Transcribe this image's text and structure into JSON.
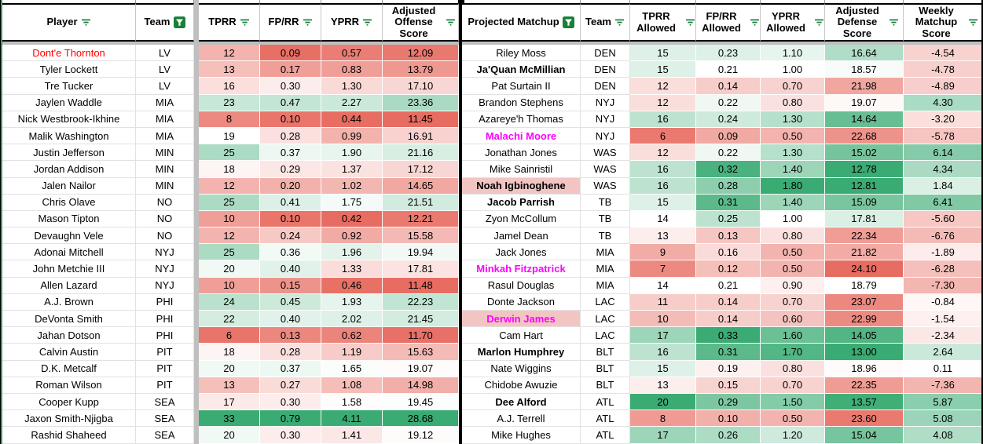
{
  "app": "spreadsheet-matchup-table",
  "colors": {
    "gradient_red": "#e7695e",
    "gradient_green": "#3aab73",
    "filter_icon_green": "#188038",
    "frozen_pane_gray": "#bfbfbf",
    "divider_black": "#000000",
    "edge_green": "#2da160",
    "name_highlight_pink": "#f3c5c2",
    "name_text_red": "#ff0000",
    "name_text_magenta": "#ff00ff"
  },
  "left_table": {
    "headers": [
      {
        "label": "Player",
        "filter": "lines"
      },
      {
        "label": "Team",
        "filter": "funnel"
      },
      {
        "label": "TPRR",
        "filter": "lines"
      },
      {
        "label": "FP/RR",
        "filter": "lines"
      },
      {
        "label": "YPRR",
        "filter": "lines"
      },
      {
        "label": "Adjusted Offense Score",
        "filter": "lines"
      }
    ],
    "rows": [
      {
        "player": "Dont'e Thornton",
        "team": "LV",
        "tprr": "12",
        "fprr": "0.09",
        "yprr": "0.57",
        "adj_offense": "12.09",
        "name_style": "red"
      },
      {
        "player": "Tyler Lockett",
        "team": "LV",
        "tprr": "13",
        "fprr": "0.17",
        "yprr": "0.83",
        "adj_offense": "13.79",
        "name_style": "normal"
      },
      {
        "player": "Tre Tucker",
        "team": "LV",
        "tprr": "16",
        "fprr": "0.30",
        "yprr": "1.30",
        "adj_offense": "17.10",
        "name_style": "normal"
      },
      {
        "player": "Jaylen Waddle",
        "team": "MIA",
        "tprr": "23",
        "fprr": "0.47",
        "yprr": "2.27",
        "adj_offense": "23.36",
        "name_style": "normal"
      },
      {
        "player": "Nick Westbrook-Ikhine",
        "team": "MIA",
        "tprr": "8",
        "fprr": "0.10",
        "yprr": "0.44",
        "adj_offense": "11.45",
        "name_style": "normal"
      },
      {
        "player": "Malik Washington",
        "team": "MIA",
        "tprr": "19",
        "fprr": "0.28",
        "yprr": "0.99",
        "adj_offense": "16.91",
        "name_style": "normal"
      },
      {
        "player": "Justin Jefferson",
        "team": "MIN",
        "tprr": "25",
        "fprr": "0.37",
        "yprr": "1.90",
        "adj_offense": "21.16",
        "name_style": "normal"
      },
      {
        "player": "Jordan Addison",
        "team": "MIN",
        "tprr": "18",
        "fprr": "0.29",
        "yprr": "1.37",
        "adj_offense": "17.12",
        "name_style": "normal"
      },
      {
        "player": "Jalen Nailor",
        "team": "MIN",
        "tprr": "12",
        "fprr": "0.20",
        "yprr": "1.02",
        "adj_offense": "14.65",
        "name_style": "normal"
      },
      {
        "player": "Chris Olave",
        "team": "NO",
        "tprr": "25",
        "fprr": "0.41",
        "yprr": "1.75",
        "adj_offense": "21.51",
        "name_style": "normal"
      },
      {
        "player": "Mason Tipton",
        "team": "NO",
        "tprr": "10",
        "fprr": "0.10",
        "yprr": "0.42",
        "adj_offense": "12.21",
        "name_style": "normal"
      },
      {
        "player": "Devaughn Vele",
        "team": "NO",
        "tprr": "12",
        "fprr": "0.24",
        "yprr": "0.92",
        "adj_offense": "15.58",
        "name_style": "normal"
      },
      {
        "player": "Adonai Mitchell",
        "team": "NYJ",
        "tprr": "25",
        "fprr": "0.36",
        "yprr": "1.96",
        "adj_offense": "19.94",
        "name_style": "normal"
      },
      {
        "player": "John Metchie III",
        "team": "NYJ",
        "tprr": "20",
        "fprr": "0.40",
        "yprr": "1.33",
        "adj_offense": "17.81",
        "name_style": "normal"
      },
      {
        "player": "Allen Lazard",
        "team": "NYJ",
        "tprr": "10",
        "fprr": "0.15",
        "yprr": "0.46",
        "adj_offense": "11.48",
        "name_style": "normal"
      },
      {
        "player": "A.J. Brown",
        "team": "PHI",
        "tprr": "24",
        "fprr": "0.45",
        "yprr": "1.93",
        "adj_offense": "22.23",
        "name_style": "normal"
      },
      {
        "player": "DeVonta Smith",
        "team": "PHI",
        "tprr": "22",
        "fprr": "0.40",
        "yprr": "2.02",
        "adj_offense": "21.45",
        "name_style": "normal"
      },
      {
        "player": "Jahan Dotson",
        "team": "PHI",
        "tprr": "6",
        "fprr": "0.13",
        "yprr": "0.62",
        "adj_offense": "11.70",
        "name_style": "normal"
      },
      {
        "player": "Calvin Austin",
        "team": "PIT",
        "tprr": "18",
        "fprr": "0.28",
        "yprr": "1.19",
        "adj_offense": "15.63",
        "name_style": "normal"
      },
      {
        "player": "D.K. Metcalf",
        "team": "PIT",
        "tprr": "20",
        "fprr": "0.37",
        "yprr": "1.65",
        "adj_offense": "19.07",
        "name_style": "normal"
      },
      {
        "player": "Roman Wilson",
        "team": "PIT",
        "tprr": "13",
        "fprr": "0.27",
        "yprr": "1.08",
        "adj_offense": "14.98",
        "name_style": "normal"
      },
      {
        "player": "Cooper Kupp",
        "team": "SEA",
        "tprr": "17",
        "fprr": "0.30",
        "yprr": "1.58",
        "adj_offense": "19.45",
        "name_style": "normal"
      },
      {
        "player": "Jaxon Smith-Njigba",
        "team": "SEA",
        "tprr": "33",
        "fprr": "0.79",
        "yprr": "4.11",
        "adj_offense": "28.68",
        "name_style": "normal"
      },
      {
        "player": "Rashid Shaheed",
        "team": "SEA",
        "tprr": "20",
        "fprr": "0.30",
        "yprr": "1.41",
        "adj_offense": "19.12",
        "name_style": "normal"
      }
    ]
  },
  "right_table": {
    "headers": [
      {
        "label": "Projected Matchup",
        "filter": "funnel"
      },
      {
        "label": "Team",
        "filter": "lines"
      },
      {
        "label": "TPRR Allowed",
        "filter": "lines"
      },
      {
        "label": "FP/RR Allowed",
        "filter": "lines"
      },
      {
        "label": "YPRR Allowed",
        "filter": "lines"
      },
      {
        "label": "Adjusted Defense Score",
        "filter": "lines"
      },
      {
        "label": "Weekly Matchup Score",
        "filter": "lines"
      }
    ],
    "rows": [
      {
        "matchup": "Riley Moss",
        "team": "DEN",
        "tprr_allowed": "15",
        "fprr_allowed": "0.23",
        "yprr_allowed": "1.10",
        "adj_defense": "16.64",
        "weekly": "-4.54",
        "name_style": "normal"
      },
      {
        "matchup": "Ja'Quan McMillian",
        "team": "DEN",
        "tprr_allowed": "15",
        "fprr_allowed": "0.21",
        "yprr_allowed": "1.00",
        "adj_defense": "18.57",
        "weekly": "-4.78",
        "name_style": "bold"
      },
      {
        "matchup": "Pat Surtain II",
        "team": "DEN",
        "tprr_allowed": "12",
        "fprr_allowed": "0.14",
        "yprr_allowed": "0.70",
        "adj_defense": "21.98",
        "weekly": "-4.89",
        "name_style": "normal"
      },
      {
        "matchup": "Brandon Stephens",
        "team": "NYJ",
        "tprr_allowed": "12",
        "fprr_allowed": "0.22",
        "yprr_allowed": "0.80",
        "adj_defense": "19.07",
        "weekly": "4.30",
        "name_style": "normal"
      },
      {
        "matchup": "Azareye'h Thomas",
        "team": "NYJ",
        "tprr_allowed": "16",
        "fprr_allowed": "0.24",
        "yprr_allowed": "1.30",
        "adj_defense": "14.64",
        "weekly": "-3.20",
        "name_style": "normal"
      },
      {
        "matchup": "Malachi Moore",
        "team": "NYJ",
        "tprr_allowed": "6",
        "fprr_allowed": "0.09",
        "yprr_allowed": "0.50",
        "adj_defense": "22.68",
        "weekly": "-5.78",
        "name_style": "magenta"
      },
      {
        "matchup": "Jonathan Jones",
        "team": "WAS",
        "tprr_allowed": "12",
        "fprr_allowed": "0.22",
        "yprr_allowed": "1.30",
        "adj_defense": "15.02",
        "weekly": "6.14",
        "name_style": "normal"
      },
      {
        "matchup": "Mike Sainristil",
        "team": "WAS",
        "tprr_allowed": "16",
        "fprr_allowed": "0.32",
        "yprr_allowed": "1.40",
        "adj_defense": "12.78",
        "weekly": "4.34",
        "name_style": "normal"
      },
      {
        "matchup": "Noah Igbinoghene",
        "team": "WAS",
        "tprr_allowed": "16",
        "fprr_allowed": "0.28",
        "yprr_allowed": "1.80",
        "adj_defense": "12.81",
        "weekly": "1.84",
        "name_style": "bold_pink"
      },
      {
        "matchup": "Jacob Parrish",
        "team": "TB",
        "tprr_allowed": "15",
        "fprr_allowed": "0.31",
        "yprr_allowed": "1.40",
        "adj_defense": "15.09",
        "weekly": "6.41",
        "name_style": "bold"
      },
      {
        "matchup": "Zyon McCollum",
        "team": "TB",
        "tprr_allowed": "14",
        "fprr_allowed": "0.25",
        "yprr_allowed": "1.00",
        "adj_defense": "17.81",
        "weekly": "-5.60",
        "name_style": "normal"
      },
      {
        "matchup": "Jamel Dean",
        "team": "TB",
        "tprr_allowed": "13",
        "fprr_allowed": "0.13",
        "yprr_allowed": "0.80",
        "adj_defense": "22.34",
        "weekly": "-6.76",
        "name_style": "normal"
      },
      {
        "matchup": "Jack Jones",
        "team": "MIA",
        "tprr_allowed": "9",
        "fprr_allowed": "0.16",
        "yprr_allowed": "0.50",
        "adj_defense": "21.82",
        "weekly": "-1.89",
        "name_style": "normal"
      },
      {
        "matchup": "Minkah Fitzpatrick",
        "team": "MIA",
        "tprr_allowed": "7",
        "fprr_allowed": "0.12",
        "yprr_allowed": "0.50",
        "adj_defense": "24.10",
        "weekly": "-6.28",
        "name_style": "magenta"
      },
      {
        "matchup": "Rasul Douglas",
        "team": "MIA",
        "tprr_allowed": "14",
        "fprr_allowed": "0.21",
        "yprr_allowed": "0.90",
        "adj_defense": "18.79",
        "weekly": "-7.30",
        "name_style": "normal"
      },
      {
        "matchup": "Donte Jackson",
        "team": "LAC",
        "tprr_allowed": "11",
        "fprr_allowed": "0.14",
        "yprr_allowed": "0.70",
        "adj_defense": "23.07",
        "weekly": "-0.84",
        "name_style": "normal"
      },
      {
        "matchup": "Derwin James",
        "team": "LAC",
        "tprr_allowed": "10",
        "fprr_allowed": "0.14",
        "yprr_allowed": "0.60",
        "adj_defense": "22.99",
        "weekly": "-1.54",
        "name_style": "magenta_pink"
      },
      {
        "matchup": "Cam Hart",
        "team": "LAC",
        "tprr_allowed": "17",
        "fprr_allowed": "0.33",
        "yprr_allowed": "1.60",
        "adj_defense": "14.05",
        "weekly": "-2.34",
        "name_style": "normal"
      },
      {
        "matchup": "Marlon Humphrey",
        "team": "BLT",
        "tprr_allowed": "16",
        "fprr_allowed": "0.31",
        "yprr_allowed": "1.70",
        "adj_defense": "13.00",
        "weekly": "2.64",
        "name_style": "bold"
      },
      {
        "matchup": "Nate Wiggins",
        "team": "BLT",
        "tprr_allowed": "15",
        "fprr_allowed": "0.19",
        "yprr_allowed": "0.80",
        "adj_defense": "18.96",
        "weekly": "0.11",
        "name_style": "normal"
      },
      {
        "matchup": "Chidobe Awuzie",
        "team": "BLT",
        "tprr_allowed": "13",
        "fprr_allowed": "0.15",
        "yprr_allowed": "0.70",
        "adj_defense": "22.35",
        "weekly": "-7.36",
        "name_style": "normal"
      },
      {
        "matchup": "Dee Alford",
        "team": "ATL",
        "tprr_allowed": "20",
        "fprr_allowed": "0.29",
        "yprr_allowed": "1.50",
        "adj_defense": "13.57",
        "weekly": "5.87",
        "name_style": "bold"
      },
      {
        "matchup": "A.J. Terrell",
        "team": "ATL",
        "tprr_allowed": "8",
        "fprr_allowed": "0.10",
        "yprr_allowed": "0.50",
        "adj_defense": "23.60",
        "weekly": "5.08",
        "name_style": "normal"
      },
      {
        "matchup": "Mike Hughes",
        "team": "ATL",
        "tprr_allowed": "17",
        "fprr_allowed": "0.26",
        "yprr_allowed": "1.20",
        "adj_defense": "15.04",
        "weekly": "4.08",
        "name_style": "normal"
      }
    ]
  },
  "color_scales": {
    "left": {
      "tprr": {
        "min": 5,
        "mid": 19,
        "max": 33
      },
      "fprr": {
        "min": 0.08,
        "mid": 0.33,
        "max": 0.79
      },
      "yprr": {
        "min": 0.4,
        "mid": 1.6,
        "max": 4.11
      },
      "adj_offense": {
        "min": 11.3,
        "mid": 19.3,
        "max": 28.68
      }
    },
    "right": {
      "tprr_allowed": {
        "min": 5,
        "mid": 14,
        "max": 20
      },
      "fprr_allowed": {
        "min": 0.0,
        "mid": 0.21,
        "max": 0.33
      },
      "yprr_allowed": {
        "min": 0.0,
        "mid": 1.0,
        "max": 1.8
      },
      "adj_defense": {
        "min": 13.4,
        "mid": 18.8,
        "max": 24.2,
        "invert": true
      },
      "weekly": {
        "min": -15,
        "mid": 0,
        "max": 10
      }
    }
  }
}
